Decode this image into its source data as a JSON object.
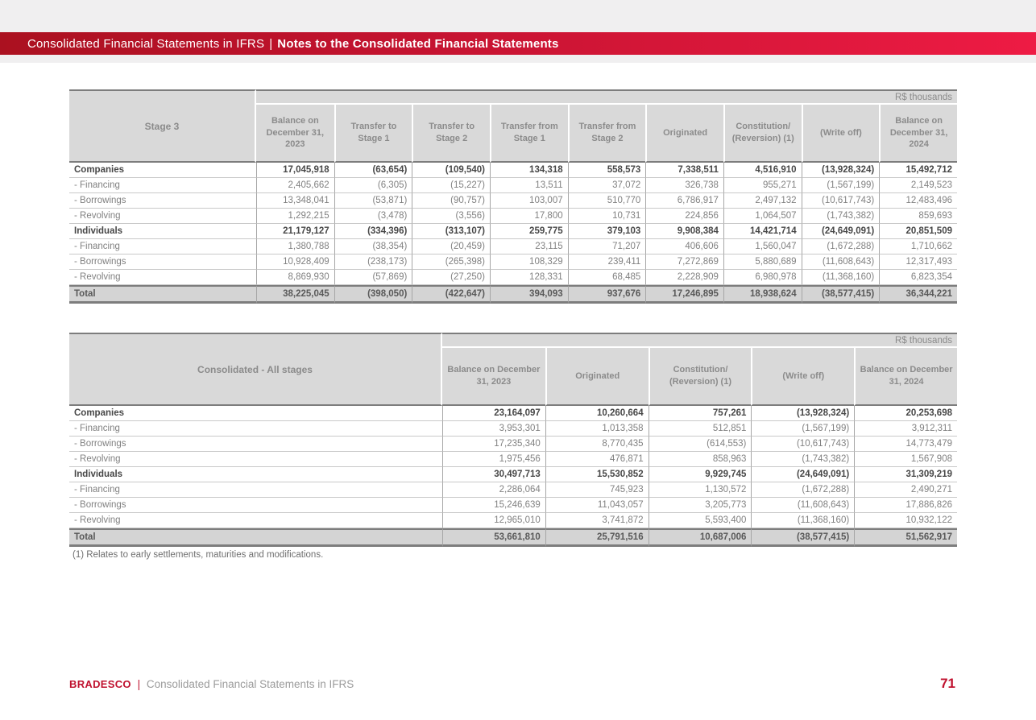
{
  "header_bar": {
    "left": "Consolidated Financial Statements in IFRS",
    "separator": "|",
    "right": "Notes to the Consolidated Financial Statements"
  },
  "colors": {
    "bar_gradient_left": "#ab1120",
    "bar_gradient_right": "#ee1b44",
    "footer_red": "#c0122f",
    "header_cell_gray": "#d9d9d9",
    "total_row_gray": "#d4d4d4"
  },
  "tables": [
    {
      "title": "Stage 3",
      "units": "R$ thousands",
      "columns": [
        "Balance on December 31, 2023",
        "Transfer to Stage 1",
        "Transfer to Stage 2",
        "Transfer from Stage 1",
        "Transfer from Stage 2",
        "Originated",
        "Constitution/ (Reversion) (1)",
        "(Write off)",
        "Balance on December 31, 2024"
      ],
      "rows": [
        {
          "label": "Companies",
          "style": "group",
          "values": [
            "17,045,918",
            "(63,654)",
            "(109,540)",
            "134,318",
            "558,573",
            "7,338,511",
            "4,516,910",
            "(13,928,324)",
            "15,492,712"
          ]
        },
        {
          "label": "- Financing",
          "style": "sub",
          "values": [
            "2,405,662",
            "(6,305)",
            "(15,227)",
            "13,511",
            "37,072",
            "326,738",
            "955,271",
            "(1,567,199)",
            "2,149,523"
          ]
        },
        {
          "label": "- Borrowings",
          "style": "sub",
          "values": [
            "13,348,041",
            "(53,871)",
            "(90,757)",
            "103,007",
            "510,770",
            "6,786,917",
            "2,497,132",
            "(10,617,743)",
            "12,483,496"
          ]
        },
        {
          "label": "- Revolving",
          "style": "sub",
          "values": [
            "1,292,215",
            "(3,478)",
            "(3,556)",
            "17,800",
            "10,731",
            "224,856",
            "1,064,507",
            "(1,743,382)",
            "859,693"
          ]
        },
        {
          "label": "Individuals",
          "style": "group",
          "values": [
            "21,179,127",
            "(334,396)",
            "(313,107)",
            "259,775",
            "379,103",
            "9,908,384",
            "14,421,714",
            "(24,649,091)",
            "20,851,509"
          ]
        },
        {
          "label": "- Financing",
          "style": "sub",
          "values": [
            "1,380,788",
            "(38,354)",
            "(20,459)",
            "23,115",
            "71,207",
            "406,606",
            "1,560,047",
            "(1,672,288)",
            "1,710,662"
          ]
        },
        {
          "label": "- Borrowings",
          "style": "sub",
          "values": [
            "10,928,409",
            "(238,173)",
            "(265,398)",
            "108,329",
            "239,411",
            "7,272,869",
            "5,880,689",
            "(11,608,643)",
            "12,317,493"
          ]
        },
        {
          "label": "- Revolving",
          "style": "sub",
          "values": [
            "8,869,930",
            "(57,869)",
            "(27,250)",
            "128,331",
            "68,485",
            "2,228,909",
            "6,980,978",
            "(11,368,160)",
            "6,823,354"
          ]
        },
        {
          "label": "Total",
          "style": "total",
          "values": [
            "38,225,045",
            "(398,050)",
            "(422,647)",
            "394,093",
            "937,676",
            "17,246,895",
            "18,938,624",
            "(38,577,415)",
            "36,344,221"
          ]
        }
      ]
    },
    {
      "title": "Consolidated - All stages",
      "units": "R$ thousands",
      "columns": [
        "Balance on December 31, 2023",
        "Originated",
        "Constitution/ (Reversion) (1)",
        "(Write off)",
        "Balance on December 31, 2024"
      ],
      "rows": [
        {
          "label": "Companies",
          "style": "group",
          "values": [
            "23,164,097",
            "10,260,664",
            "757,261",
            "(13,928,324)",
            "20,253,698"
          ]
        },
        {
          "label": "- Financing",
          "style": "sub",
          "values": [
            "3,953,301",
            "1,013,358",
            "512,851",
            "(1,567,199)",
            "3,912,311"
          ]
        },
        {
          "label": "- Borrowings",
          "style": "sub",
          "values": [
            "17,235,340",
            "8,770,435",
            "(614,553)",
            "(10,617,743)",
            "14,773,479"
          ]
        },
        {
          "label": "- Revolving",
          "style": "sub",
          "values": [
            "1,975,456",
            "476,871",
            "858,963",
            "(1,743,382)",
            "1,567,908"
          ]
        },
        {
          "label": "Individuals",
          "style": "group",
          "values": [
            "30,497,713",
            "15,530,852",
            "9,929,745",
            "(24,649,091)",
            "31,309,219"
          ]
        },
        {
          "label": "- Financing",
          "style": "sub",
          "values": [
            "2,286,064",
            "745,923",
            "1,130,572",
            "(1,672,288)",
            "2,490,271"
          ]
        },
        {
          "label": "- Borrowings",
          "style": "sub",
          "values": [
            "15,246,639",
            "11,043,057",
            "3,205,773",
            "(11,608,643)",
            "17,886,826"
          ]
        },
        {
          "label": "- Revolving",
          "style": "sub",
          "values": [
            "12,965,010",
            "3,741,872",
            "5,593,400",
            "(11,368,160)",
            "10,932,122"
          ]
        },
        {
          "label": "Total",
          "style": "total",
          "values": [
            "53,661,810",
            "25,791,516",
            "10,687,006",
            "(38,577,415)",
            "51,562,917"
          ]
        }
      ]
    }
  ],
  "footnote": "(1) Relates to early settlements, maturities and modifications.",
  "footer": {
    "brand": "BRADESCO",
    "separator": "|",
    "doc_title": "Consolidated Financial Statements in IFRS",
    "page_number": "71"
  }
}
